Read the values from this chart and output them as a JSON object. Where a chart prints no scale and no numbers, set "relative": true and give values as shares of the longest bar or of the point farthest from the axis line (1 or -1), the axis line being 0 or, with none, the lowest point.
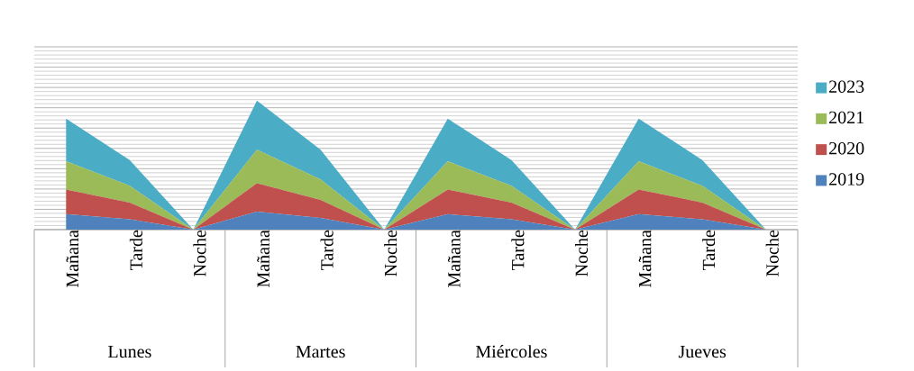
{
  "chart_data": {
    "type": "area",
    "relative": true,
    "stacked": true,
    "grid": "y",
    "legend": "right",
    "categories": [
      "Mañana",
      "Tarde",
      "Noche",
      "Mañana",
      "Tarde",
      "Noche",
      "Mañana",
      "Tarde",
      "Noche",
      "Mañana",
      "Tarde",
      "Noche"
    ],
    "annotations": [
      "Lunes",
      "Martes",
      "Miércoles",
      "Jueves"
    ],
    "series": [
      {
        "name": "2019",
        "color": "#4f81bd",
        "values": [
          0.12,
          0.08,
          0,
          0.14,
          0.09,
          0,
          0.12,
          0.08,
          0,
          0.12,
          0.08,
          0
        ]
      },
      {
        "name": "2020",
        "color": "#c0504d",
        "values": [
          0.19,
          0.13,
          0,
          0.22,
          0.14,
          0,
          0.19,
          0.13,
          0,
          0.19,
          0.13,
          0
        ]
      },
      {
        "name": "2021",
        "color": "#9bbb59",
        "values": [
          0.22,
          0.13,
          0,
          0.26,
          0.16,
          0,
          0.22,
          0.13,
          0,
          0.22,
          0.13,
          0
        ]
      },
      {
        "name": "2023",
        "color": "#4bacc6",
        "values": [
          0.33,
          0.2,
          0,
          0.38,
          0.23,
          0,
          0.33,
          0.2,
          0,
          0.33,
          0.2,
          0
        ]
      }
    ]
  }
}
